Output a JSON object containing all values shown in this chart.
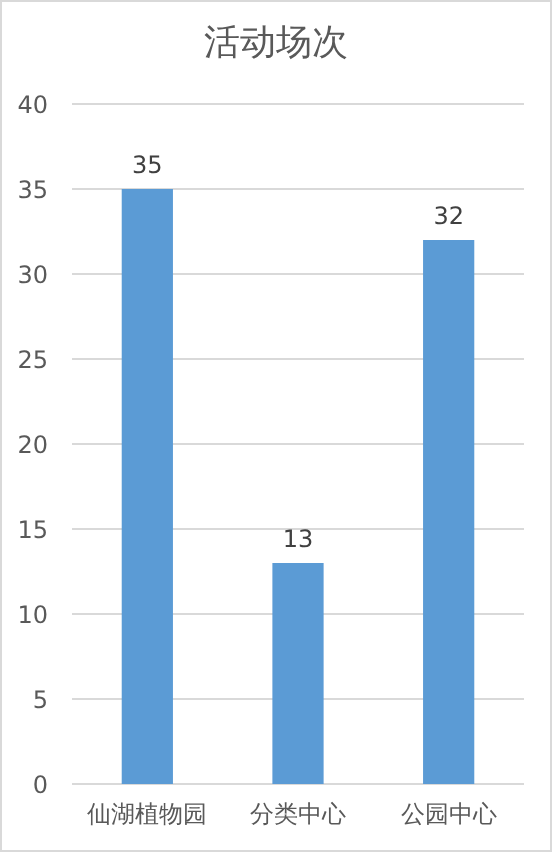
{
  "chart_data": {
    "type": "bar",
    "title": "活动场次",
    "categories": [
      "仙湖植物园",
      "分类中心",
      "公园中心"
    ],
    "values": [
      35,
      13,
      32
    ],
    "color": "#5b9bd5",
    "ylim": [
      0,
      40
    ],
    "yticks": [
      0,
      5,
      10,
      15,
      20,
      25,
      30,
      35,
      40
    ],
    "grid": "y",
    "data_labels": true
  }
}
